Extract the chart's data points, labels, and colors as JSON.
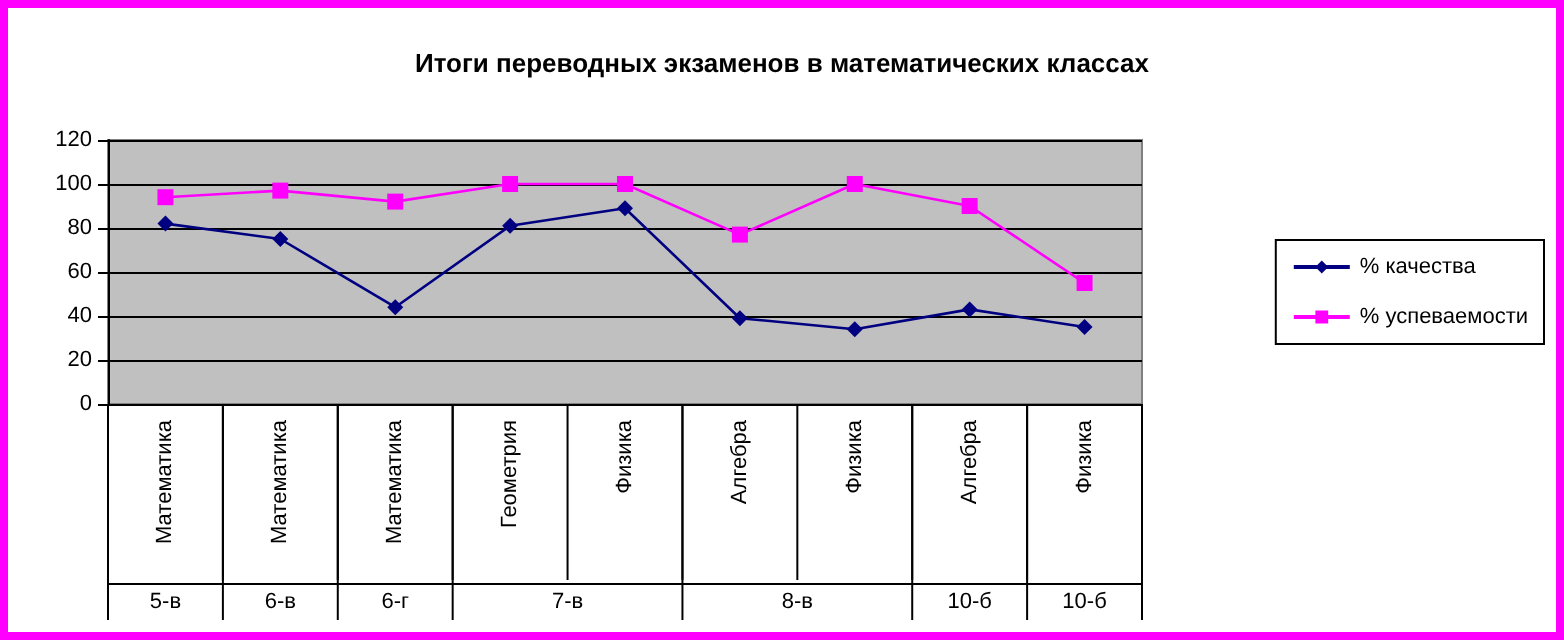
{
  "chart_data": {
    "type": "line",
    "title": "Итоги переводных экзаменов в математических классах",
    "categories": [
      "5-в\nМатематика",
      "6-в\nМатематика",
      "6-г\nМатематика",
      "7-в\nГеометрия",
      "Физика",
      "8-в\nАлгебра",
      "Физика",
      "10-б\nАлгебра",
      "10-б\nФизика"
    ],
    "series": [
      {
        "name": "% качества",
        "color": "#000080",
        "marker": "diamond",
        "values": [
          82,
          75,
          44,
          81,
          89,
          39,
          34,
          43,
          35
        ]
      },
      {
        "name": "% успеваемости",
        "color": "#ff00ff",
        "marker": "square",
        "values": [
          94,
          97,
          92,
          100,
          100,
          77,
          100,
          90,
          55
        ]
      }
    ],
    "ylim": [
      0,
      120
    ],
    "yticks": [
      0,
      20,
      40,
      60,
      80,
      100,
      120
    ],
    "grid": "y",
    "legend": "right"
  }
}
